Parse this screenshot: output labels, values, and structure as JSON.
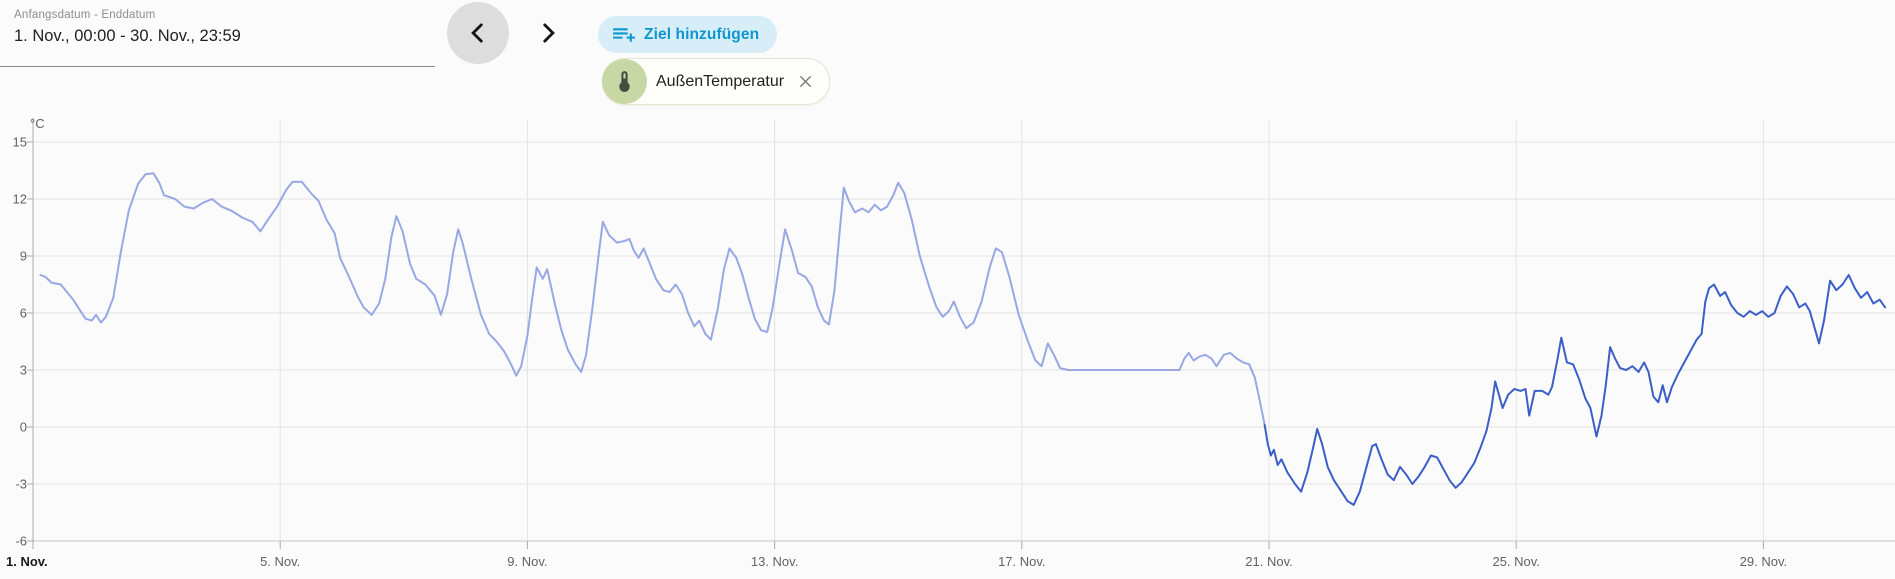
{
  "date_range": {
    "label": "Anfangsdatum - Enddatum",
    "value": "1. Nov., 00:00 - 30. Nov., 23:59"
  },
  "toolbar": {
    "prev_icon": "chevron-left-icon",
    "next_icon": "chevron-right-icon",
    "add_target_icon": "playlist-plus-icon",
    "add_target_label": "Ziel hinzufügen"
  },
  "entity_chip": {
    "avatar_icon": "thermometer-icon",
    "label": "AußenTemperatur",
    "remove_icon": "close-icon",
    "avatar_color": "#c8d8a4"
  },
  "colors": {
    "background": "#fbfbfb",
    "button_bg": "#d7edf8",
    "button_fg": "#0e96cf",
    "line_light": "#98a8e4",
    "line_dark": "#3b5fc7",
    "grid": "#e3e3e3",
    "axis": "#ababab",
    "tick_text": "#5f6368"
  },
  "chart_data": {
    "type": "line",
    "title": "",
    "unit_label": "°C",
    "xlabel": "",
    "ylabel": "°C",
    "ylim": [
      -6,
      15
    ],
    "yticks": [
      15,
      12,
      9,
      6,
      3,
      0,
      -3,
      -6
    ],
    "xlim_days": [
      0,
      30
    ],
    "grid": true,
    "legend": "none",
    "xticks": [
      {
        "day": 0,
        "label": "1. Nov.",
        "bold": true
      },
      {
        "day": 4,
        "label": "5. Nov.",
        "bold": false
      },
      {
        "day": 8,
        "label": "9. Nov.",
        "bold": false
      },
      {
        "day": 12,
        "label": "13. Nov.",
        "bold": false
      },
      {
        "day": 16,
        "label": "17. Nov.",
        "bold": false
      },
      {
        "day": 20,
        "label": "21. Nov.",
        "bold": false
      },
      {
        "day": 24,
        "label": "25. Nov.",
        "bold": false
      },
      {
        "day": 28,
        "label": "29. Nov.",
        "bold": false
      }
    ],
    "series": [
      {
        "name": "AußenTemperatur",
        "segment": "1.-20. Nov",
        "color": "#98a8e4",
        "points": [
          [
            0.12,
            8.0
          ],
          [
            0.2,
            7.9
          ],
          [
            0.3,
            7.6
          ],
          [
            0.45,
            7.5
          ],
          [
            0.55,
            7.1
          ],
          [
            0.65,
            6.7
          ],
          [
            0.75,
            6.2
          ],
          [
            0.85,
            5.7
          ],
          [
            0.95,
            5.6
          ],
          [
            1.02,
            5.9
          ],
          [
            1.1,
            5.5
          ],
          [
            1.18,
            5.8
          ],
          [
            1.3,
            6.8
          ],
          [
            1.42,
            9.2
          ],
          [
            1.55,
            11.4
          ],
          [
            1.7,
            12.8
          ],
          [
            1.82,
            13.3
          ],
          [
            1.95,
            13.35
          ],
          [
            2.05,
            12.8
          ],
          [
            2.12,
            12.2
          ],
          [
            2.3,
            12.0
          ],
          [
            2.45,
            11.6
          ],
          [
            2.6,
            11.5
          ],
          [
            2.75,
            11.8
          ],
          [
            2.9,
            12.0
          ],
          [
            3.05,
            11.6
          ],
          [
            3.2,
            11.4
          ],
          [
            3.4,
            11.0
          ],
          [
            3.55,
            10.8
          ],
          [
            3.68,
            10.3
          ],
          [
            3.8,
            10.9
          ],
          [
            3.95,
            11.6
          ],
          [
            4.1,
            12.5
          ],
          [
            4.2,
            12.9
          ],
          [
            4.35,
            12.9
          ],
          [
            4.5,
            12.3
          ],
          [
            4.62,
            11.9
          ],
          [
            4.75,
            10.9
          ],
          [
            4.88,
            10.2
          ],
          [
            4.97,
            8.9
          ],
          [
            5.1,
            8.0
          ],
          [
            5.25,
            6.9
          ],
          [
            5.35,
            6.3
          ],
          [
            5.48,
            5.9
          ],
          [
            5.6,
            6.5
          ],
          [
            5.7,
            7.8
          ],
          [
            5.8,
            10.0
          ],
          [
            5.88,
            11.1
          ],
          [
            5.98,
            10.3
          ],
          [
            6.1,
            8.6
          ],
          [
            6.2,
            7.8
          ],
          [
            6.35,
            7.5
          ],
          [
            6.5,
            6.9
          ],
          [
            6.6,
            5.9
          ],
          [
            6.7,
            7.0
          ],
          [
            6.8,
            9.2
          ],
          [
            6.88,
            10.4
          ],
          [
            6.95,
            9.7
          ],
          [
            7.1,
            7.7
          ],
          [
            7.25,
            5.9
          ],
          [
            7.38,
            4.9
          ],
          [
            7.5,
            4.5
          ],
          [
            7.62,
            4.0
          ],
          [
            7.72,
            3.4
          ],
          [
            7.82,
            2.7
          ],
          [
            7.9,
            3.2
          ],
          [
            8.0,
            4.8
          ],
          [
            8.08,
            6.8
          ],
          [
            8.15,
            8.4
          ],
          [
            8.25,
            7.8
          ],
          [
            8.32,
            8.3
          ],
          [
            8.45,
            6.4
          ],
          [
            8.55,
            5.1
          ],
          [
            8.65,
            4.1
          ],
          [
            8.78,
            3.3
          ],
          [
            8.87,
            2.9
          ],
          [
            8.95,
            3.8
          ],
          [
            9.05,
            6.2
          ],
          [
            9.15,
            9.0
          ],
          [
            9.22,
            10.8
          ],
          [
            9.32,
            10.1
          ],
          [
            9.45,
            9.7
          ],
          [
            9.58,
            9.8
          ],
          [
            9.65,
            9.9
          ],
          [
            9.72,
            9.3
          ],
          [
            9.8,
            8.9
          ],
          [
            9.88,
            9.4
          ],
          [
            9.97,
            8.7
          ],
          [
            10.08,
            7.8
          ],
          [
            10.2,
            7.2
          ],
          [
            10.3,
            7.1
          ],
          [
            10.4,
            7.5
          ],
          [
            10.5,
            7.0
          ],
          [
            10.6,
            6.0
          ],
          [
            10.7,
            5.3
          ],
          [
            10.78,
            5.6
          ],
          [
            10.88,
            4.9
          ],
          [
            10.97,
            4.6
          ],
          [
            11.08,
            6.2
          ],
          [
            11.18,
            8.3
          ],
          [
            11.27,
            9.4
          ],
          [
            11.38,
            8.9
          ],
          [
            11.48,
            8.0
          ],
          [
            11.58,
            6.8
          ],
          [
            11.68,
            5.7
          ],
          [
            11.78,
            5.1
          ],
          [
            11.88,
            5.0
          ],
          [
            11.97,
            6.3
          ],
          [
            12.08,
            8.6
          ],
          [
            12.17,
            10.4
          ],
          [
            12.28,
            9.3
          ],
          [
            12.38,
            8.1
          ],
          [
            12.5,
            7.9
          ],
          [
            12.6,
            7.4
          ],
          [
            12.7,
            6.3
          ],
          [
            12.8,
            5.6
          ],
          [
            12.88,
            5.4
          ],
          [
            12.97,
            7.2
          ],
          [
            13.05,
            10.2
          ],
          [
            13.12,
            12.6
          ],
          [
            13.2,
            11.9
          ],
          [
            13.3,
            11.3
          ],
          [
            13.42,
            11.5
          ],
          [
            13.52,
            11.3
          ],
          [
            13.62,
            11.7
          ],
          [
            13.72,
            11.4
          ],
          [
            13.82,
            11.6
          ],
          [
            13.92,
            12.2
          ],
          [
            14.0,
            12.85
          ],
          [
            14.1,
            12.3
          ],
          [
            14.22,
            10.9
          ],
          [
            14.35,
            9.0
          ],
          [
            14.5,
            7.4
          ],
          [
            14.62,
            6.3
          ],
          [
            14.72,
            5.8
          ],
          [
            14.82,
            6.1
          ],
          [
            14.9,
            6.6
          ],
          [
            15.0,
            5.8
          ],
          [
            15.1,
            5.2
          ],
          [
            15.22,
            5.5
          ],
          [
            15.35,
            6.6
          ],
          [
            15.48,
            8.4
          ],
          [
            15.58,
            9.4
          ],
          [
            15.68,
            9.2
          ],
          [
            15.8,
            7.9
          ],
          [
            15.95,
            5.9
          ],
          [
            16.1,
            4.5
          ],
          [
            16.22,
            3.5
          ],
          [
            16.32,
            3.2
          ],
          [
            16.42,
            4.4
          ],
          [
            16.52,
            3.8
          ],
          [
            16.62,
            3.1
          ],
          [
            16.75,
            3.0
          ],
          [
            18.55,
            3.0
          ],
          [
            18.63,
            3.6
          ],
          [
            18.7,
            3.9
          ],
          [
            18.78,
            3.5
          ],
          [
            18.87,
            3.7
          ],
          [
            18.97,
            3.8
          ],
          [
            19.07,
            3.6
          ],
          [
            19.15,
            3.2
          ],
          [
            19.27,
            3.8
          ],
          [
            19.37,
            3.9
          ],
          [
            19.48,
            3.6
          ],
          [
            19.58,
            3.4
          ],
          [
            19.68,
            3.3
          ],
          [
            19.77,
            2.6
          ],
          [
            19.85,
            1.4
          ],
          [
            19.93,
            0.1
          ]
        ]
      },
      {
        "name": "AußenTemperatur",
        "segment": "20.-30. Nov",
        "color": "#3b5fc7",
        "points": [
          [
            19.93,
            0.1
          ],
          [
            19.98,
            -0.9
          ],
          [
            20.03,
            -1.5
          ],
          [
            20.08,
            -1.2
          ],
          [
            20.14,
            -2.0
          ],
          [
            20.2,
            -1.7
          ],
          [
            20.3,
            -2.4
          ],
          [
            20.42,
            -3.0
          ],
          [
            20.52,
            -3.4
          ],
          [
            20.62,
            -2.4
          ],
          [
            20.72,
            -1.0
          ],
          [
            20.78,
            -0.1
          ],
          [
            20.86,
            -0.9
          ],
          [
            20.95,
            -2.1
          ],
          [
            21.05,
            -2.8
          ],
          [
            21.15,
            -3.3
          ],
          [
            21.27,
            -3.9
          ],
          [
            21.37,
            -4.1
          ],
          [
            21.47,
            -3.4
          ],
          [
            21.57,
            -2.2
          ],
          [
            21.67,
            -1.0
          ],
          [
            21.73,
            -0.9
          ],
          [
            21.82,
            -1.7
          ],
          [
            21.92,
            -2.5
          ],
          [
            22.02,
            -2.8
          ],
          [
            22.12,
            -2.1
          ],
          [
            22.22,
            -2.5
          ],
          [
            22.32,
            -3.0
          ],
          [
            22.42,
            -2.6
          ],
          [
            22.52,
            -2.1
          ],
          [
            22.62,
            -1.5
          ],
          [
            22.72,
            -1.6
          ],
          [
            22.82,
            -2.2
          ],
          [
            22.92,
            -2.8
          ],
          [
            23.02,
            -3.2
          ],
          [
            23.12,
            -2.9
          ],
          [
            23.22,
            -2.4
          ],
          [
            23.32,
            -1.9
          ],
          [
            23.42,
            -1.1
          ],
          [
            23.52,
            -0.2
          ],
          [
            23.6,
            1.0
          ],
          [
            23.66,
            2.4
          ],
          [
            23.72,
            1.7
          ],
          [
            23.78,
            1.0
          ],
          [
            23.87,
            1.7
          ],
          [
            23.97,
            2.0
          ],
          [
            24.07,
            1.9
          ],
          [
            24.15,
            2.0
          ],
          [
            24.21,
            0.6
          ],
          [
            24.3,
            1.9
          ],
          [
            24.42,
            1.9
          ],
          [
            24.52,
            1.7
          ],
          [
            24.58,
            2.1
          ],
          [
            24.67,
            3.6
          ],
          [
            24.73,
            4.7
          ],
          [
            24.82,
            3.4
          ],
          [
            24.92,
            3.3
          ],
          [
            25.02,
            2.5
          ],
          [
            25.12,
            1.5
          ],
          [
            25.2,
            1.0
          ],
          [
            25.3,
            -0.5
          ],
          [
            25.38,
            0.6
          ],
          [
            25.45,
            2.2
          ],
          [
            25.52,
            4.2
          ],
          [
            25.6,
            3.6
          ],
          [
            25.68,
            3.1
          ],
          [
            25.78,
            3.0
          ],
          [
            25.88,
            3.2
          ],
          [
            25.98,
            2.9
          ],
          [
            26.07,
            3.4
          ],
          [
            26.14,
            2.9
          ],
          [
            26.22,
            1.6
          ],
          [
            26.3,
            1.3
          ],
          [
            26.37,
            2.2
          ],
          [
            26.44,
            1.3
          ],
          [
            26.52,
            2.1
          ],
          [
            26.62,
            2.8
          ],
          [
            26.72,
            3.4
          ],
          [
            26.82,
            4.0
          ],
          [
            26.92,
            4.6
          ],
          [
            27.0,
            4.9
          ],
          [
            27.06,
            6.6
          ],
          [
            27.12,
            7.3
          ],
          [
            27.2,
            7.5
          ],
          [
            27.3,
            6.9
          ],
          [
            27.38,
            7.1
          ],
          [
            27.48,
            6.4
          ],
          [
            27.58,
            6.0
          ],
          [
            27.68,
            5.8
          ],
          [
            27.78,
            6.1
          ],
          [
            27.88,
            5.9
          ],
          [
            27.98,
            6.1
          ],
          [
            28.08,
            5.8
          ],
          [
            28.18,
            6.0
          ],
          [
            28.28,
            6.9
          ],
          [
            28.38,
            7.4
          ],
          [
            28.48,
            7.0
          ],
          [
            28.58,
            6.3
          ],
          [
            28.68,
            6.5
          ],
          [
            28.75,
            6.1
          ],
          [
            28.83,
            5.2
          ],
          [
            28.9,
            4.4
          ],
          [
            28.98,
            5.6
          ],
          [
            29.08,
            7.7
          ],
          [
            29.18,
            7.2
          ],
          [
            29.28,
            7.5
          ],
          [
            29.38,
            8.0
          ],
          [
            29.48,
            7.3
          ],
          [
            29.58,
            6.8
          ],
          [
            29.68,
            7.1
          ],
          [
            29.78,
            6.5
          ],
          [
            29.88,
            6.7
          ],
          [
            29.97,
            6.3
          ]
        ]
      }
    ]
  }
}
